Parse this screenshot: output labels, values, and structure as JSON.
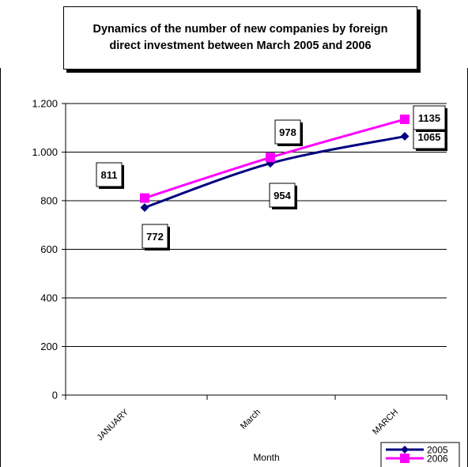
{
  "chart_data": {
    "type": "line",
    "title_lines": [
      "Dynamics of the number of new companies by foreign",
      "direct investment between March 2005 and  2006"
    ],
    "xlabel": "Month",
    "ylabel": "",
    "categories": [
      "JANUARY",
      "March",
      "MARCH"
    ],
    "ylim": [
      0,
      1200
    ],
    "yticks": [
      0,
      200,
      400,
      600,
      800,
      1000,
      1200
    ],
    "ytick_labels": [
      "0",
      "200",
      "400",
      "600",
      "800",
      "1.000",
      "1.200"
    ],
    "grid": true,
    "legend_position": "bottom-right",
    "series": [
      {
        "name": "2005",
        "values": [
          772,
          954,
          1065
        ],
        "labels": [
          "772",
          "954",
          "1065"
        ],
        "color": "#000080",
        "marker": "diamond"
      },
      {
        "name": "2006",
        "values": [
          811,
          978,
          1135
        ],
        "labels": [
          "811",
          "978",
          "1135"
        ],
        "color": "#ff00ff",
        "marker": "square"
      }
    ]
  }
}
